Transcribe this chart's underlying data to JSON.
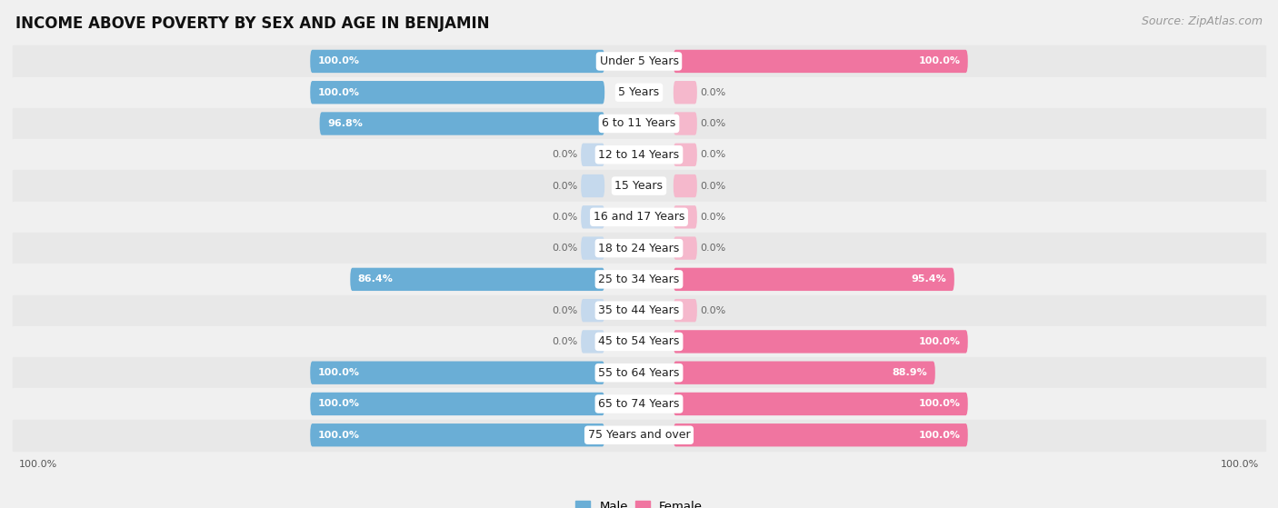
{
  "title": "INCOME ABOVE POVERTY BY SEX AND AGE IN BENJAMIN",
  "source": "Source: ZipAtlas.com",
  "categories": [
    "Under 5 Years",
    "5 Years",
    "6 to 11 Years",
    "12 to 14 Years",
    "15 Years",
    "16 and 17 Years",
    "18 to 24 Years",
    "25 to 34 Years",
    "35 to 44 Years",
    "45 to 54 Years",
    "55 to 64 Years",
    "65 to 74 Years",
    "75 Years and over"
  ],
  "male_values": [
    100.0,
    100.0,
    96.8,
    0.0,
    0.0,
    0.0,
    0.0,
    86.4,
    0.0,
    0.0,
    100.0,
    100.0,
    100.0
  ],
  "female_values": [
    100.0,
    0.0,
    0.0,
    0.0,
    0.0,
    0.0,
    0.0,
    95.4,
    0.0,
    100.0,
    88.9,
    100.0,
    100.0
  ],
  "male_color": "#6aaed6",
  "female_color": "#f075a0",
  "male_label": "Male",
  "female_label": "Female",
  "bg_color": "#f0f0f0",
  "row_bg_dark": "#e2e2e2",
  "row_bg_light": "#ebebeb",
  "bar_bg_male": "#c5d9ed",
  "bar_bg_female": "#f5b8cc",
  "max_val": 100.0,
  "zero_bar_pct": 8.0,
  "title_fontsize": 12,
  "source_fontsize": 9,
  "label_fontsize": 8.5,
  "cat_fontsize": 9,
  "value_fontsize": 8
}
